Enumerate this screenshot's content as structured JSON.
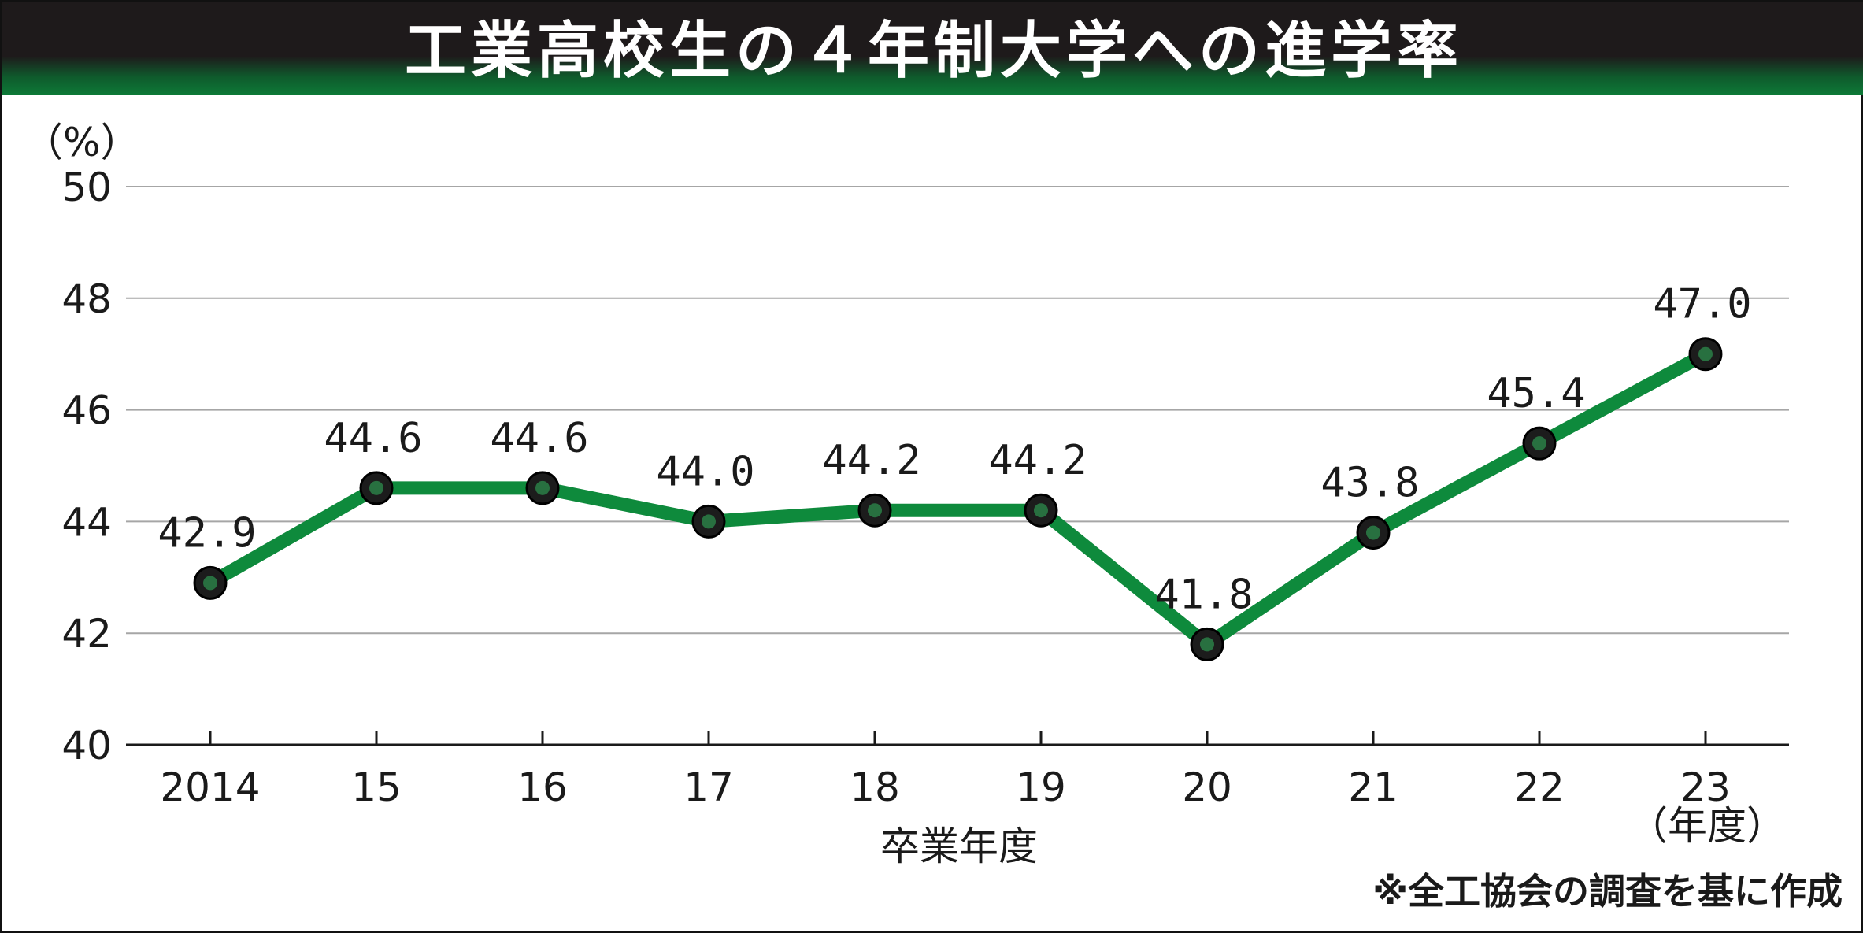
{
  "chart_data": {
    "type": "line",
    "title": "工業高校生の４年制大学への進学率",
    "ylabel": "（%）",
    "xlabel": "卒業年度",
    "x_unit_label": "（年度）",
    "source": "※全工協会の調査を基に作成",
    "categories": [
      "2014",
      "15",
      "16",
      "17",
      "18",
      "19",
      "20",
      "21",
      "22",
      "23"
    ],
    "series": [
      {
        "values": [
          42.9,
          44.6,
          44.6,
          44.0,
          44.2,
          44.2,
          41.8,
          43.8,
          45.4,
          47.0
        ],
        "data_labels": [
          "42.9",
          "44.6",
          "44.6",
          "44.0",
          "44.2",
          "44.2",
          "41.8",
          "43.8",
          "45.4",
          "47.0"
        ]
      }
    ],
    "yticks": [
      "40",
      "42",
      "44",
      "46",
      "48",
      "50"
    ],
    "ylim": [
      40,
      50
    ],
    "grid": true,
    "line_color": "#0e8a3c",
    "marker_color": "#1c1c1c",
    "header_color": "#1e1a1b"
  }
}
